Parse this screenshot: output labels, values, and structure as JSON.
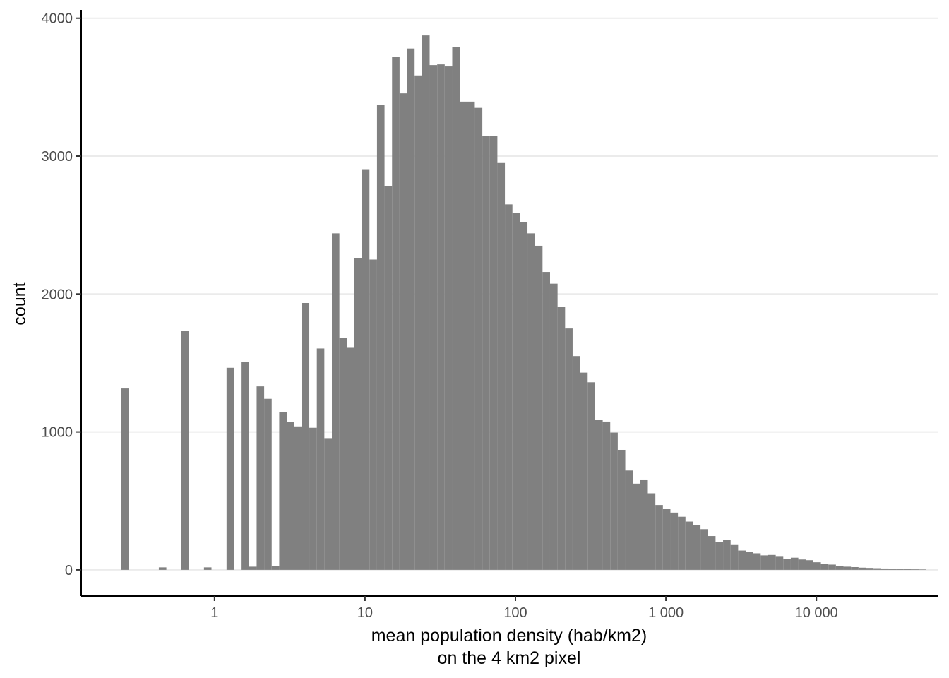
{
  "chart_data": {
    "type": "bar",
    "xlabel_lines": [
      "mean population density (hab/km2)",
      "on the 4 km2 pixel"
    ],
    "ylabel": "count",
    "x_scale": "log10",
    "grid": "horizontal-major",
    "legend": "none",
    "xlim": [
      0.13,
      64000
    ],
    "ylim": [
      -190,
      4060
    ],
    "x_ticks": [
      {
        "value": 1,
        "label": "1"
      },
      {
        "value": 10,
        "label": "10"
      },
      {
        "value": 100,
        "label": "100"
      },
      {
        "value": 1000,
        "label": "1 000"
      },
      {
        "value": 10000,
        "label": "10 000"
      }
    ],
    "y_ticks": [
      {
        "value": 0,
        "label": "0"
      },
      {
        "value": 1000,
        "label": "1000"
      },
      {
        "value": 2000,
        "label": "2000"
      },
      {
        "value": 3000,
        "label": "3000"
      },
      {
        "value": 4000,
        "label": "4000"
      }
    ],
    "bin_width_log10": 0.05,
    "first_bin_left": 0.2398,
    "values": [
      1315,
      0,
      0,
      0,
      0,
      18,
      0,
      0,
      1735,
      0,
      0,
      18,
      0,
      0,
      1465,
      0,
      1505,
      23,
      1330,
      1240,
      30,
      1145,
      1070,
      1040,
      1935,
      1030,
      1605,
      955,
      2440,
      1680,
      1610,
      2260,
      2900,
      2250,
      3370,
      2785,
      3720,
      3455,
      3780,
      3585,
      3875,
      3660,
      3665,
      3650,
      3790,
      3395,
      3395,
      3350,
      3145,
      3145,
      2950,
      2650,
      2590,
      2520,
      2440,
      2350,
      2160,
      2075,
      1905,
      1750,
      1550,
      1430,
      1360,
      1090,
      1075,
      995,
      870,
      720,
      625,
      655,
      555,
      470,
      440,
      415,
      385,
      350,
      325,
      295,
      245,
      200,
      215,
      185,
      140,
      130,
      120,
      105,
      108,
      100,
      80,
      88,
      75,
      70,
      55,
      45,
      38,
      30,
      23,
      20,
      16,
      14,
      12,
      10,
      8,
      6,
      5,
      4,
      3
    ]
  },
  "colors": {
    "bar_fill": "#808080",
    "grid": "#ebebeb",
    "axis_line": "#000000",
    "tick_text": "#4d4d4d",
    "title_text": "#000000"
  }
}
